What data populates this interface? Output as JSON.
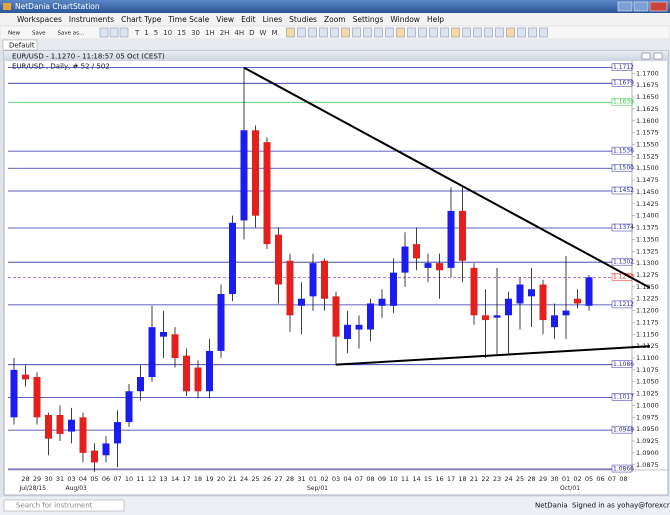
{
  "window": {
    "title": "NetDania ChartStation"
  },
  "menu": [
    "Workspaces",
    "Instruments",
    "Chart Type",
    "Time Scale",
    "View",
    "Edit",
    "Lines",
    "Studies",
    "Zoom",
    "Settings",
    "Window",
    "Help"
  ],
  "toolbar": {
    "file_buttons": [
      "New",
      "Save",
      "Save as..."
    ],
    "timeframes": [
      "T",
      "1",
      "5",
      "10",
      "15",
      "30",
      "1H",
      "2H",
      "4H",
      "D",
      "W",
      "M"
    ]
  },
  "tab": {
    "label": "Default"
  },
  "status": {
    "search_placeholder": "Search for instrument",
    "brand": "NetDania",
    "signed_in": "Signed in as yohay@forexcrunch.com"
  },
  "chart_data": {
    "type": "candlestick",
    "title": "EUR/USD - 1.1270 - 11:18:57 05 Oct (CEST)",
    "subtitle": "EUR/USD , Daily, # 52 / 502",
    "categories": [
      null,
      "28",
      "29",
      "30",
      "31",
      "03",
      "04",
      "05",
      "06",
      "07",
      "10",
      "11",
      "12",
      "13",
      "14",
      "17",
      "18",
      "19",
      "20",
      "21",
      "24",
      "25",
      "26",
      "27",
      "28",
      "31",
      "01",
      "02",
      "03",
      "04",
      "07",
      "08",
      "09",
      "10",
      "11",
      "14",
      "15",
      "16",
      "17",
      "18",
      "21",
      "22",
      "23",
      "24",
      "25",
      "28",
      "29",
      "30",
      "01",
      "02",
      "05",
      "06",
      "07",
      "08"
    ],
    "period_labels": [
      {
        "label": "Jul/28/15",
        "index": 1
      },
      {
        "label": "Aug/03",
        "index": 5
      },
      {
        "label": "Sep/01",
        "index": 26
      },
      {
        "label": "Oct/01",
        "index": 48
      }
    ],
    "open": [
      1.0975,
      1.1065,
      1.106,
      1.098,
      1.098,
      1.0945,
      1.0975,
      1.0905,
      1.0895,
      1.092,
      1.0965,
      1.103,
      1.106,
      1.1145,
      1.115,
      1.1105,
      1.108,
      1.103,
      1.1115,
      1.1235,
      1.139,
      1.158,
      1.1555,
      1.136,
      1.1305,
      1.121,
      1.123,
      1.1305,
      1.123,
      1.114,
      1.116,
      1.116,
      1.121,
      1.121,
      1.128,
      1.134,
      1.129,
      1.13,
      1.129,
      1.141,
      1.129,
      1.119,
      1.1185,
      1.119,
      1.1215,
      1.123,
      1.1255,
      1.1165,
      1.119,
      1.1225,
      1.121,
      null,
      null,
      null
    ],
    "high": [
      1.11,
      1.1085,
      1.107,
      1.0985,
      1.1,
      1.0995,
      1.0985,
      1.092,
      1.0935,
      1.099,
      1.1045,
      1.1085,
      1.121,
      1.12,
      1.1165,
      1.112,
      1.1095,
      1.114,
      1.1255,
      1.14,
      1.1712,
      1.159,
      1.1565,
      1.1375,
      1.132,
      1.126,
      1.132,
      1.131,
      1.124,
      1.12,
      1.119,
      1.1225,
      1.1245,
      1.131,
      1.1365,
      1.1375,
      1.132,
      1.132,
      1.146,
      1.146,
      1.13,
      1.1245,
      1.129,
      1.124,
      1.127,
      1.129,
      1.1265,
      1.1215,
      1.1315,
      1.1245,
      1.1275,
      null,
      null,
      null
    ],
    "low": [
      1.096,
      1.104,
      1.096,
      1.0895,
      1.0925,
      1.092,
      1.088,
      1.086,
      1.088,
      1.087,
      1.0955,
      1.101,
      1.105,
      1.11,
      1.108,
      1.102,
      1.1015,
      1.1015,
      1.11,
      1.122,
      1.135,
      1.1375,
      1.133,
      1.1215,
      1.1155,
      1.115,
      1.12,
      1.12,
      1.1086,
      1.111,
      1.112,
      1.1135,
      1.1185,
      1.1195,
      1.125,
      1.1285,
      1.126,
      1.1225,
      1.127,
      1.126,
      1.117,
      1.11,
      1.1105,
      1.111,
      1.116,
      1.1165,
      1.115,
      1.114,
      1.114,
      1.1205,
      1.12,
      null,
      null,
      null
    ],
    "close": [
      1.1075,
      1.1055,
      1.0975,
      1.093,
      1.094,
      1.097,
      1.09,
      1.088,
      1.092,
      1.0965,
      1.103,
      1.106,
      1.1165,
      1.1155,
      1.11,
      1.103,
      1.103,
      1.1115,
      1.1235,
      1.1385,
      1.158,
      1.14,
      1.134,
      1.1255,
      1.119,
      1.1225,
      1.13,
      1.1225,
      1.1145,
      1.117,
      1.117,
      1.1215,
      1.1225,
      1.128,
      1.1335,
      1.131,
      1.13,
      1.1285,
      1.141,
      1.1305,
      1.119,
      1.118,
      1.119,
      1.1225,
      1.1255,
      1.1245,
      1.118,
      1.119,
      1.12,
      1.1215,
      1.127,
      null,
      null,
      null
    ],
    "up_color": "#1c1cf0",
    "down_color": "#e3201c",
    "ylim": [
      1.0864,
      1.1726
    ],
    "yticks": [
      1.0875,
      {
        "value": 1.09,
        "label": "1.0900"
      },
      1.0925,
      {
        "value": 1.095,
        "label": "1.0950"
      },
      1.0975,
      {
        "value": 1.1,
        "label": "1.1000"
      },
      1.1025,
      {
        "value": 1.105,
        "label": "1.1050"
      },
      1.1075,
      {
        "value": 1.11,
        "label": "1.1100"
      },
      1.1125,
      {
        "value": 1.115,
        "label": "1.1150"
      },
      1.1175,
      {
        "value": 1.12,
        "label": "1.1200"
      },
      1.1225,
      {
        "value": 1.125,
        "label": "1.1250"
      },
      1.1275,
      {
        "value": 1.13,
        "label": "1.1300"
      },
      1.1325,
      {
        "value": 1.135,
        "label": "1.1350"
      },
      1.1375,
      {
        "value": 1.14,
        "label": "1.1400"
      },
      1.1425,
      {
        "value": 1.145,
        "label": "1.1450"
      },
      1.1475,
      {
        "value": 1.15,
        "label": "1.1500"
      },
      1.1525,
      {
        "value": 1.155,
        "label": "1.1550"
      },
      1.1575,
      {
        "value": 1.16,
        "label": "1.1600"
      },
      1.1625,
      {
        "value": 1.165,
        "label": "1.1650"
      },
      1.1675,
      {
        "value": 1.17,
        "label": "1.1700"
      }
    ],
    "levels": [
      {
        "value": 1.1712,
        "color": "#2d2da8"
      },
      {
        "value": 1.1679,
        "color": "#2d2da8"
      },
      {
        "value": 1.1639,
        "color": "#2ecc40"
      },
      {
        "value": 1.1536,
        "color": "#2d2da8"
      },
      {
        "value": 1.15,
        "label": "1.1500",
        "color": "#2d2da8"
      },
      {
        "value": 1.1452,
        "color": "#2d2da8"
      },
      {
        "value": 1.1374,
        "color": "#2d2da8"
      },
      {
        "value": 1.1302,
        "color": "#2d2da8"
      },
      {
        "value": 1.127,
        "label": "1.1270",
        "color": "#9b5cb4",
        "style": "dashed"
      },
      {
        "value": 1.1212,
        "color": "#2d2da8"
      },
      {
        "value": 1.1086,
        "color": "#2d2da8"
      },
      {
        "value": 1.1017,
        "color": "#2d2da8"
      },
      {
        "value": 1.0948,
        "color": "#2d2da8"
      },
      {
        "value": 1.0866,
        "color": "#2d2da8"
      }
    ],
    "trendlines": [
      {
        "points": [
          [
            20,
            1.1712
          ],
          [
            55.3,
            1.1248
          ]
        ],
        "color": "#000000"
      },
      {
        "points": [
          [
            28,
            1.1086
          ],
          [
            55.3,
            1.1125
          ]
        ],
        "color": "#000000"
      }
    ]
  }
}
